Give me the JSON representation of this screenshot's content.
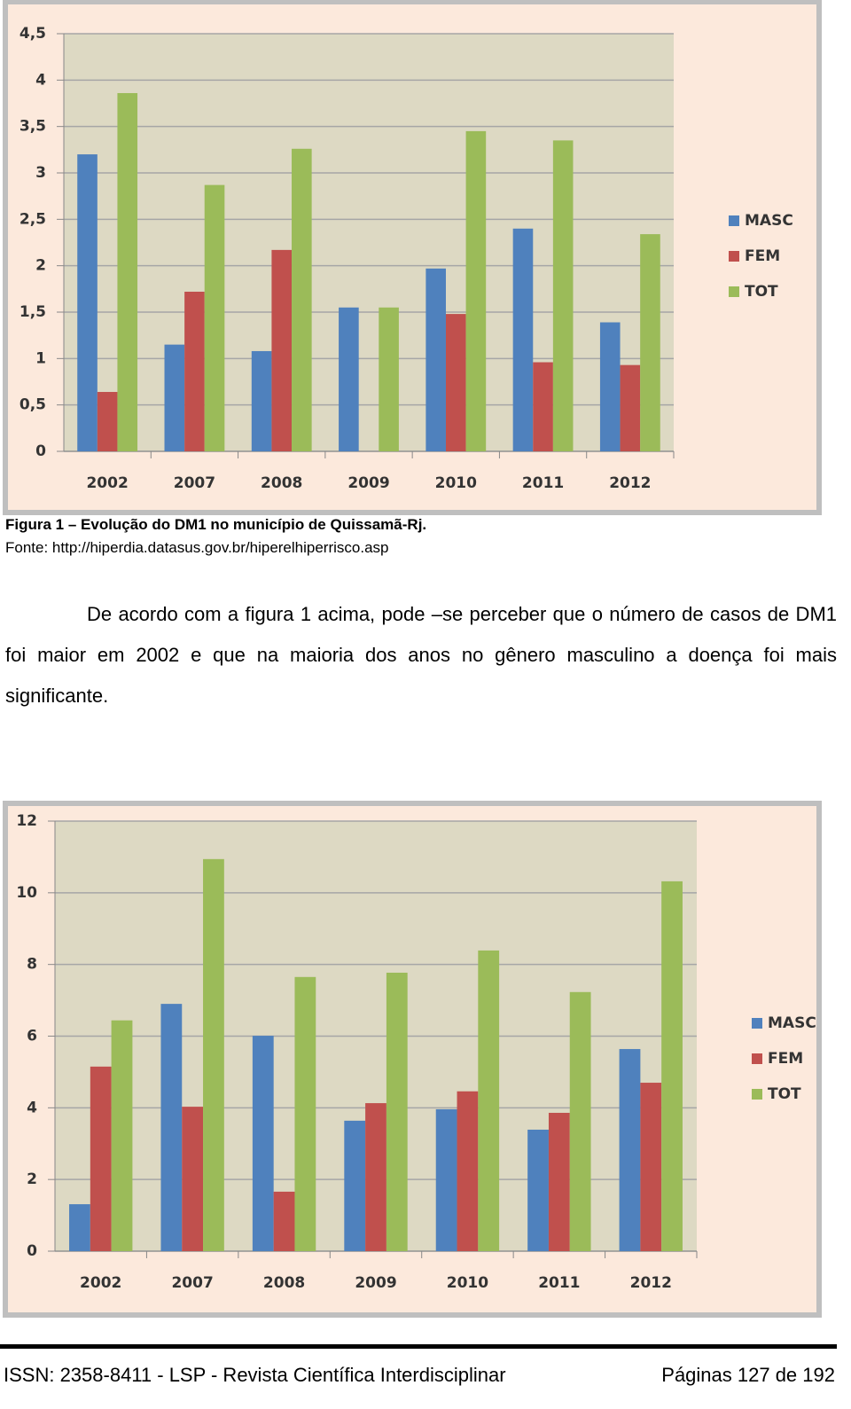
{
  "chart_data": [
    {
      "type": "bar",
      "categories": [
        "2002",
        "2007",
        "2008",
        "2009",
        "2010",
        "2011",
        "2012"
      ],
      "series": [
        {
          "name": "MASC",
          "color": "#4f81bd",
          "values": [
            3.2,
            1.15,
            1.08,
            1.55,
            1.97,
            2.4,
            1.39
          ]
        },
        {
          "name": "FEM",
          "color": "#c0504d",
          "values": [
            0.64,
            1.72,
            2.17,
            null,
            1.48,
            0.96,
            0.93
          ]
        },
        {
          "name": "TOT",
          "color": "#9bbb59",
          "values": [
            3.86,
            2.87,
            3.26,
            1.55,
            3.45,
            3.35,
            2.34
          ]
        }
      ],
      "ylim": [
        0,
        4.5
      ],
      "yticks": [
        0,
        {
          "value": 0.5,
          "label": "0,5"
        },
        1,
        {
          "value": 1.5,
          "label": "1,5"
        },
        2,
        {
          "value": 2.5,
          "label": "2,5"
        },
        3,
        {
          "value": 3.5,
          "label": "3,5"
        },
        4,
        {
          "value": 4.5,
          "label": "4,5"
        }
      ],
      "grid": true,
      "legend": "right"
    },
    {
      "type": "bar",
      "categories": [
        "2002",
        "2007",
        "2008",
        "2009",
        "2010",
        "2011",
        "2012"
      ],
      "series": [
        {
          "name": "MASC",
          "color": "#4f81bd",
          "values": [
            1.31,
            6.9,
            6.01,
            3.64,
            3.96,
            3.39,
            5.64
          ]
        },
        {
          "name": "FEM",
          "color": "#c0504d",
          "values": [
            5.15,
            4.03,
            1.66,
            4.13,
            4.46,
            3.86,
            4.7
          ]
        },
        {
          "name": "TOT",
          "color": "#9bbb59",
          "values": [
            6.44,
            10.94,
            7.65,
            7.77,
            8.39,
            7.23,
            10.32
          ]
        }
      ],
      "ylim": [
        0,
        12
      ],
      "yticks": [
        0,
        2,
        4,
        6,
        8,
        10,
        12
      ],
      "grid": true,
      "legend": "right"
    }
  ],
  "caption": {
    "title": "Figura 1 – Evolução do DM1 no município de Quissamã-Rj.",
    "source": "Fonte: http://hiperdia.datasus.gov.br/hiperelhiperrisco.asp"
  },
  "paragraph": "De acordo com a figura 1 acima, pode –se perceber que o número de casos de DM1 foi maior em 2002 e que na maioria dos anos no gênero masculino a doença foi mais significante.",
  "footer": {
    "left": "ISSN: 2358-8411 - LSP - Revista Científica Interdisciplinar",
    "right": "Páginas 127 de 192"
  }
}
